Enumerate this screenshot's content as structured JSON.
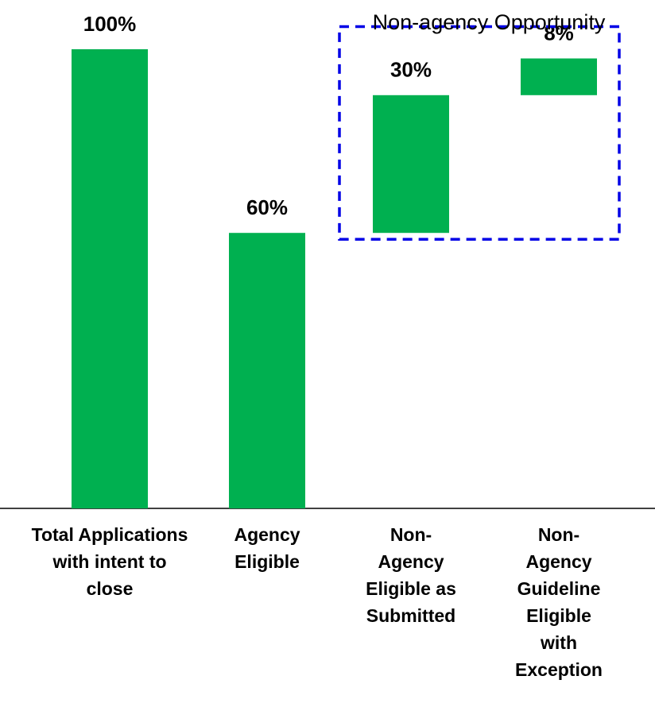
{
  "chart_data": {
    "type": "waterfall",
    "categories": [
      "Total Applications with intent to close",
      "Agency Eligible",
      "Non-Agency Eligible as Submitted",
      "Non-Agency Guideline Eligible with Exception"
    ],
    "values": [
      100,
      60,
      30,
      8
    ],
    "value_labels": [
      "100%",
      "60%",
      "30%",
      "8%"
    ],
    "color": "#00b050",
    "annotation": "Non-agency Opportunity"
  }
}
